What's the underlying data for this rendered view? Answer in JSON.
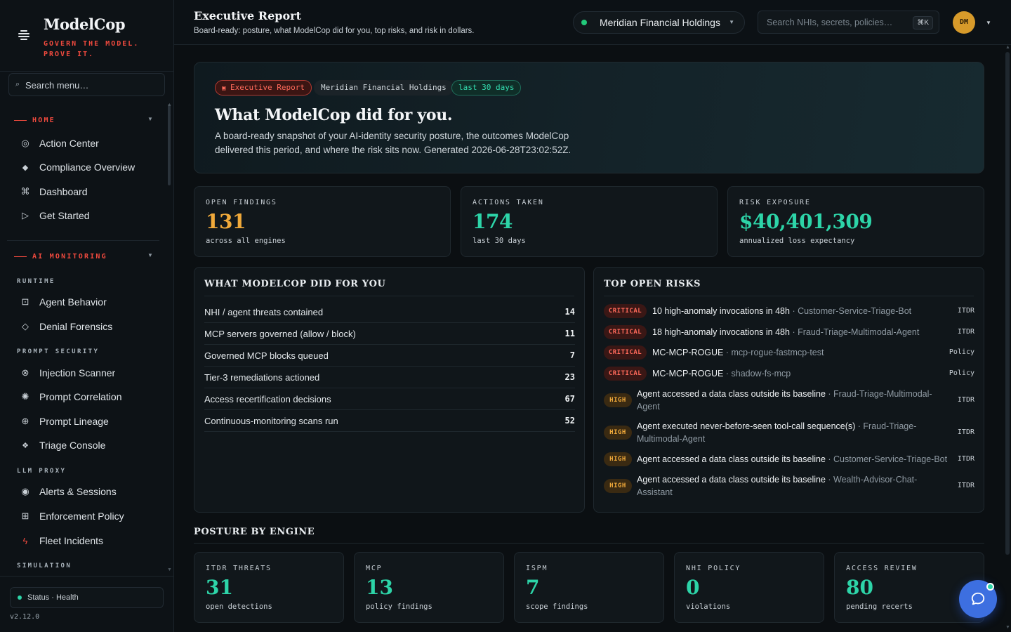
{
  "brand": {
    "name": "ModelCop",
    "tagline": "GOVERN THE MODEL. PROVE IT."
  },
  "sidebar": {
    "search_label": "Search menu…",
    "home": {
      "label": "HOME",
      "items": [
        {
          "label": "Action Center",
          "icon": "target-icon"
        },
        {
          "label": "Compliance Overview",
          "icon": "diamond-icon"
        },
        {
          "label": "Dashboard",
          "icon": "command-icon"
        },
        {
          "label": "Get Started",
          "icon": "play-icon"
        }
      ]
    },
    "ai_monitoring": {
      "label": "AI MONITORING",
      "runtime": {
        "label": "RUNTIME",
        "items": [
          {
            "label": "Agent Behavior"
          },
          {
            "label": "Denial Forensics"
          }
        ]
      },
      "prompt_security": {
        "label": "PROMPT SECURITY",
        "items": [
          {
            "label": "Injection Scanner"
          },
          {
            "label": "Prompt Correlation"
          },
          {
            "label": "Prompt Lineage"
          },
          {
            "label": "Triage Console"
          }
        ]
      },
      "llm_proxy": {
        "label": "LLM PROXY",
        "items": [
          {
            "label": "Alerts & Sessions"
          },
          {
            "label": "Enforcement Policy"
          },
          {
            "label": "Fleet Incidents"
          }
        ]
      },
      "simulation": {
        "label": "SIMULATION"
      }
    },
    "status": "Status · Health",
    "version": "v2.12.0"
  },
  "header": {
    "title": "Executive Report",
    "subtitle": "Board-ready: posture, what ModelCop did for you, top risks, and risk in dollars.",
    "org": "Meridian Financial Holdings",
    "search_placeholder": "Search NHIs, secrets, policies…",
    "shortcut": "⌘K",
    "avatar": "DM"
  },
  "hero": {
    "chip_report": "Executive Report",
    "chip_org": "Meridian Financial Holdings",
    "chip_period": "last 30 days",
    "title": "What ModelCop did for you.",
    "description": "A board-ready snapshot of your AI-identity security posture, the outcomes ModelCop delivered this period, and where the risk sits now. Generated 2026-06-28T23:02:52Z."
  },
  "kpis": [
    {
      "label": "OPEN FINDINGS",
      "value": "131",
      "sub": "across all engines",
      "color": "#f0a93a"
    },
    {
      "label": "ACTIONS TAKEN",
      "value": "174",
      "sub": "last 30 days",
      "color": "#2dd4a8"
    },
    {
      "label": "RISK EXPOSURE",
      "value": "$40,401,309",
      "sub": "annualized loss expectancy",
      "color": "#2dd4a8"
    }
  ],
  "did_for_you": {
    "title": "WHAT MODELCOP DID FOR YOU",
    "rows": [
      {
        "label": "NHI / agent threats contained",
        "value": "14"
      },
      {
        "label": "MCP servers governed (allow / block)",
        "value": "11"
      },
      {
        "label": "Governed MCP blocks queued",
        "value": "7"
      },
      {
        "label": "Tier-3 remediations actioned",
        "value": "23"
      },
      {
        "label": "Access recertification decisions",
        "value": "67"
      },
      {
        "label": "Continuous-monitoring scans run",
        "value": "52"
      }
    ]
  },
  "top_risks": {
    "title": "TOP OPEN RISKS",
    "rows": [
      {
        "severity": "CRITICAL",
        "title": "10 high-anomaly invocations in 48h",
        "target": " · Customer-Service-Triage-Bot",
        "source": "ITDR"
      },
      {
        "severity": "CRITICAL",
        "title": "18 high-anomaly invocations in 48h",
        "target": " · Fraud-Triage-Multimodal-Agent",
        "source": "ITDR"
      },
      {
        "severity": "CRITICAL",
        "title": "MC-MCP-ROGUE",
        "target": " · mcp-rogue-fastmcp-test",
        "source": "Policy"
      },
      {
        "severity": "CRITICAL",
        "title": "MC-MCP-ROGUE",
        "target": " · shadow-fs-mcp",
        "source": "Policy"
      },
      {
        "severity": "HIGH",
        "title": "Agent accessed a data class outside its baseline",
        "target": " · Fraud-Triage-Multimodal-Agent",
        "source": "ITDR"
      },
      {
        "severity": "HIGH",
        "title": "Agent executed never-before-seen tool-call sequence(s)",
        "target": " · Fraud-Triage-Multimodal-Agent",
        "source": "ITDR"
      },
      {
        "severity": "HIGH",
        "title": "Agent accessed a data class outside its baseline",
        "target": " · Customer-Service-Triage-Bot",
        "source": "ITDR"
      },
      {
        "severity": "HIGH",
        "title": "Agent accessed a data class outside its baseline",
        "target": " · Wealth-Advisor-Chat-Assistant",
        "source": "ITDR"
      }
    ]
  },
  "posture": {
    "title": "POSTURE BY ENGINE",
    "engines": [
      {
        "label": "ITDR THREATS",
        "value": "31",
        "sub": "open detections"
      },
      {
        "label": "MCP",
        "value": "13",
        "sub": "policy findings"
      },
      {
        "label": "ISPM",
        "value": "7",
        "sub": "scope findings"
      },
      {
        "label": "NHI POLICY",
        "value": "0",
        "sub": "violations"
      },
      {
        "label": "ACCESS REVIEW",
        "value": "80",
        "sub": "pending recerts"
      }
    ]
  },
  "colors": {
    "accent_red": "#f04a3e",
    "accent_green": "#2dd4a8",
    "accent_amber": "#f0a93a",
    "chat_button": "#3d6fe0"
  }
}
